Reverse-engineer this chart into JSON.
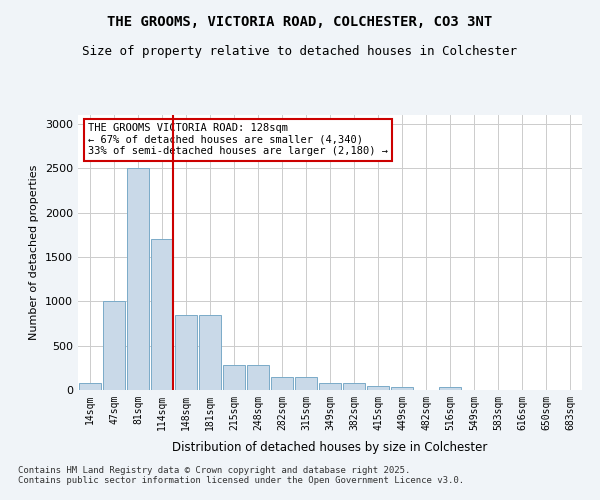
{
  "title1": "THE GROOMS, VICTORIA ROAD, COLCHESTER, CO3 3NT",
  "title2": "Size of property relative to detached houses in Colchester",
  "xlabel": "Distribution of detached houses by size in Colchester",
  "ylabel": "Number of detached properties",
  "categories": [
    "14sqm",
    "47sqm",
    "81sqm",
    "114sqm",
    "148sqm",
    "181sqm",
    "215sqm",
    "248sqm",
    "282sqm",
    "315sqm",
    "349sqm",
    "382sqm",
    "415sqm",
    "449sqm",
    "482sqm",
    "516sqm",
    "549sqm",
    "583sqm",
    "616sqm",
    "650sqm",
    "683sqm"
  ],
  "values": [
    75,
    1000,
    2500,
    1700,
    850,
    850,
    280,
    280,
    150,
    150,
    75,
    75,
    50,
    30,
    0,
    30,
    0,
    0,
    0,
    0,
    0
  ],
  "bar_color": "#c9d9e8",
  "bar_edge_color": "#7aaac8",
  "vline_x": 3,
  "vline_color": "#cc0000",
  "annotation_text": "THE GROOMS VICTORIA ROAD: 128sqm\n← 67% of detached houses are smaller (4,340)\n33% of semi-detached houses are larger (2,180) →",
  "annotation_box_color": "white",
  "annotation_box_edge": "#cc0000",
  "ylim": [
    0,
    3100
  ],
  "yticks": [
    0,
    500,
    1000,
    1500,
    2000,
    2500,
    3000
  ],
  "footnote": "Contains HM Land Registry data © Crown copyright and database right 2025.\nContains public sector information licensed under the Open Government Licence v3.0.",
  "bg_color": "#f0f4f8",
  "plot_bg_color": "#ffffff",
  "grid_color": "#cccccc"
}
